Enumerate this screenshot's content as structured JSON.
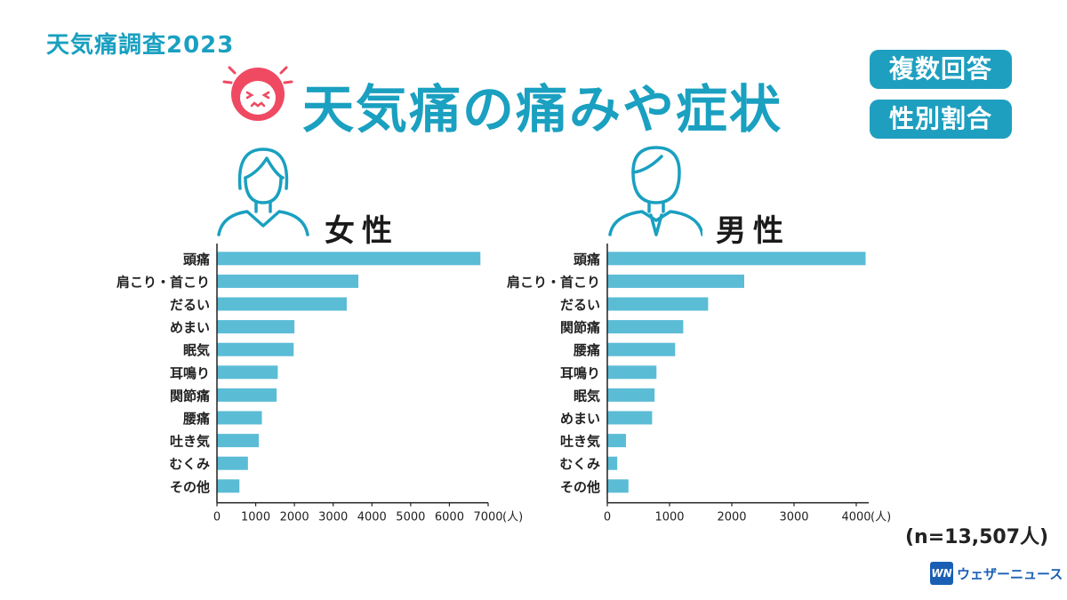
{
  "header": {
    "series_tag": "天気痛調査2023",
    "title": "天気痛の痛みや症状",
    "badge_multiple": "複数回答",
    "badge_gender": "性別割合"
  },
  "colors": {
    "bar": "#5bbcd6",
    "accent": "#1aa0c0",
    "badge": "#1f9fbf",
    "face": "#ef4a62"
  },
  "icons": {
    "face": "pained-face-icon",
    "female": "female-person-icon",
    "male": "male-person-icon"
  },
  "note": "(n=13,507人)",
  "logo": {
    "mark": "WN",
    "text": "ウェザーニュース"
  },
  "chart_data": [
    {
      "type": "bar",
      "orientation": "horizontal",
      "title": "女性",
      "unit": "(人)",
      "categories": [
        "頭痛",
        "肩こり・首こり",
        "だるい",
        "めまい",
        "眠気",
        "耳鳴り",
        "関節痛",
        "腰痛",
        "吐き気",
        "むくみ",
        "その他"
      ],
      "values": [
        6800,
        3650,
        3350,
        2000,
        1980,
        1570,
        1540,
        1160,
        1080,
        800,
        580
      ],
      "xlim": [
        0,
        7000
      ],
      "ticks": [
        0,
        1000,
        2000,
        3000,
        4000,
        5000,
        6000,
        7000
      ]
    },
    {
      "type": "bar",
      "orientation": "horizontal",
      "title": "男性",
      "unit": "(人)",
      "categories": [
        "頭痛",
        "肩こり・首こり",
        "だるい",
        "関節痛",
        "腰痛",
        "耳鳴り",
        "眠気",
        "めまい",
        "吐き気",
        "むくみ",
        "その他"
      ],
      "values": [
        4150,
        2200,
        1620,
        1220,
        1090,
        790,
        760,
        720,
        300,
        160,
        340
      ],
      "xlim": [
        0,
        4200
      ],
      "ticks": [
        0,
        1000,
        2000,
        3000,
        4000
      ]
    }
  ]
}
